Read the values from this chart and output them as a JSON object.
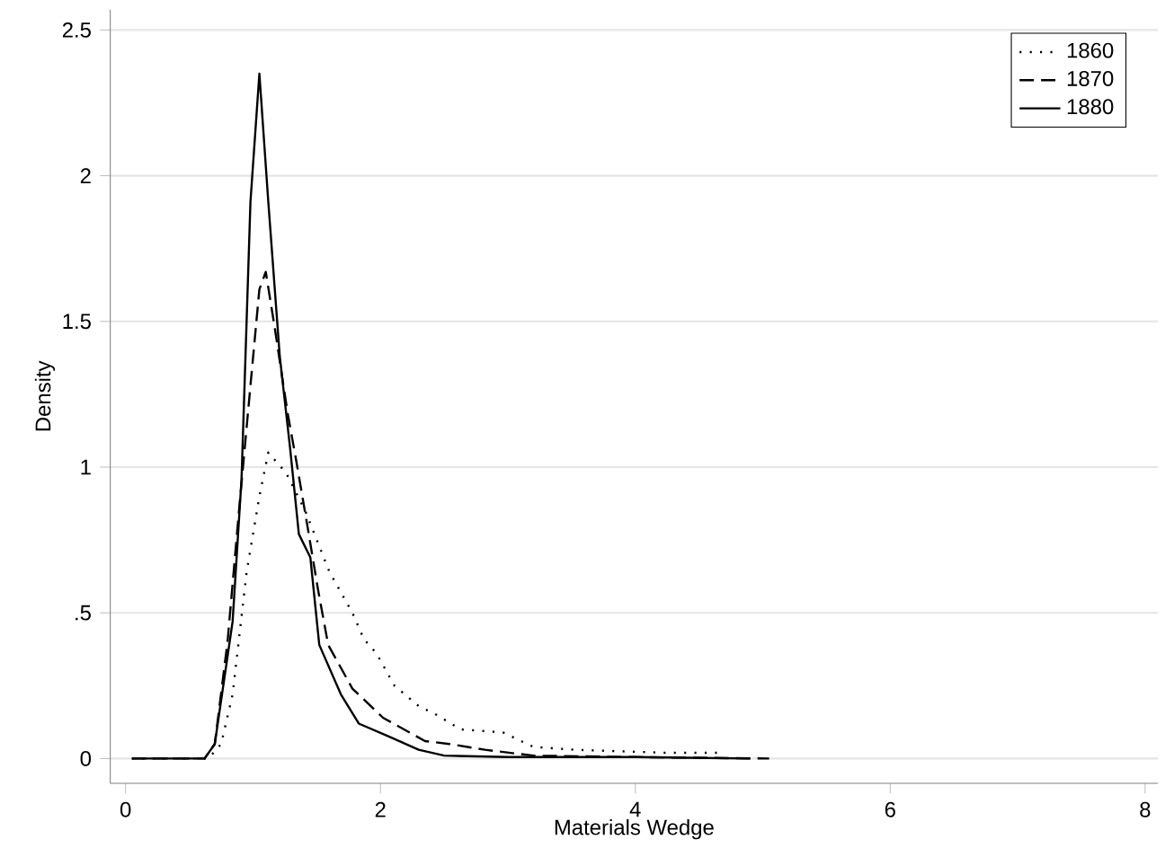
{
  "chart_data": {
    "type": "line",
    "xlabel": "Materials Wedge",
    "ylabel": "Density",
    "xlim": [
      -0.12,
      8.1
    ],
    "ylim": [
      -0.085,
      2.57
    ],
    "xticks": [
      0,
      2,
      4,
      6,
      8
    ],
    "yticks": [
      0,
      {
        "value": 0.5,
        "label": ".5"
      },
      1,
      1.5,
      2,
      2.5
    ],
    "grid": "y",
    "legend": "top right",
    "marker": "none",
    "series": [
      {
        "name": "1860",
        "color": "#000000",
        "line_style": "dotted",
        "x": [
          0.05,
          0.65,
          0.75,
          0.84,
          0.95,
          1.05,
          1.12,
          1.26,
          1.41,
          1.6,
          1.78,
          1.87,
          1.97,
          2.11,
          2.3,
          2.44,
          2.63,
          2.96,
          3.2,
          3.53,
          4.23,
          4.65
        ],
        "values": [
          0,
          0,
          0.05,
          0.22,
          0.64,
          0.9,
          1.05,
          0.98,
          0.85,
          0.64,
          0.5,
          0.41,
          0.36,
          0.25,
          0.18,
          0.15,
          0.1,
          0.09,
          0.04,
          0.03,
          0.02,
          0.02
        ]
      },
      {
        "name": "1870",
        "color": "#000000",
        "line_style": "dashed",
        "x": [
          0.05,
          0.62,
          0.7,
          0.8,
          0.89,
          0.98,
          1.05,
          1.1,
          1.17,
          1.27,
          1.34,
          1.43,
          1.51,
          1.59,
          1.78,
          2.02,
          2.35,
          2.54,
          2.82,
          3.2,
          4.0,
          5.05
        ],
        "values": [
          0,
          0,
          0.05,
          0.4,
          0.85,
          1.28,
          1.61,
          1.67,
          1.48,
          1.19,
          1.02,
          0.79,
          0.58,
          0.39,
          0.24,
          0.14,
          0.06,
          0.05,
          0.03,
          0.01,
          0.005,
          0
        ]
      },
      {
        "name": "1880",
        "color": "#000000",
        "line_style": "solid",
        "x": [
          0.05,
          0.62,
          0.7,
          0.84,
          0.91,
          0.98,
          1.05,
          1.12,
          1.21,
          1.29,
          1.36,
          1.45,
          1.52,
          1.69,
          1.83,
          2.07,
          2.3,
          2.5,
          3.0,
          4.0,
          4.9
        ],
        "values": [
          0,
          0,
          0.05,
          0.47,
          0.96,
          1.91,
          2.35,
          1.91,
          1.38,
          1.07,
          0.77,
          0.69,
          0.39,
          0.22,
          0.12,
          0.075,
          0.03,
          0.01,
          0.005,
          0.005,
          0
        ]
      }
    ]
  }
}
